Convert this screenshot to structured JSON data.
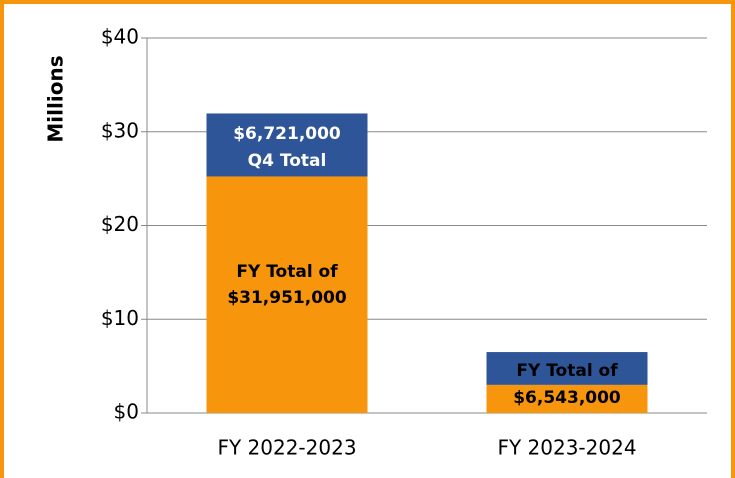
{
  "chart_data": {
    "type": "stacked_bar",
    "y_label": "Millions",
    "categories": [
      "FY 2022-2023",
      "FY 2023-2024"
    ],
    "series": [
      {
        "name": "FY",
        "color": "#f7960c",
        "values": [
          25.23,
          3.0
        ]
      },
      {
        "name": "Q4",
        "color": "#2e5597",
        "values": [
          6.721,
          3.5
        ]
      }
    ],
    "ylim": [
      0,
      40
    ],
    "yticks": [
      {
        "value": 0,
        "label": "$0"
      },
      {
        "value": 10,
        "label": "$10"
      },
      {
        "value": 20,
        "label": "$20"
      },
      {
        "value": 30,
        "label": "$30"
      },
      {
        "value": 40,
        "label": "$40"
      }
    ],
    "grid": true,
    "annotations": [
      "$6,721,000",
      "Q4 Total",
      "FY Total of",
      "$31,951,000",
      "FY Total of",
      "$6,543,000"
    ]
  }
}
